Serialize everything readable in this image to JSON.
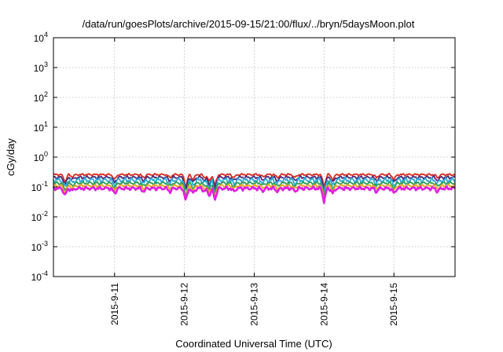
{
  "chart_data": {
    "type": "line",
    "title": "/data/run/goesPlots/archive/2015-09-15/21:00/flux/../bryn/5daysMoon.plot",
    "xlabel": "Coordinated Universal Time (UTC)",
    "ylabel": "cGy/day",
    "yscale": "log",
    "ylim": [
      0.0001,
      10000
    ],
    "xlim": [
      "2015-09-10T03:00",
      "2015-09-15T21:00"
    ],
    "grid": true,
    "legend": "none",
    "y_ticks": [
      {
        "base": "10",
        "exp": "-4",
        "value": 0.0001
      },
      {
        "base": "10",
        "exp": "-3",
        "value": 0.001
      },
      {
        "base": "10",
        "exp": "-2",
        "value": 0.01
      },
      {
        "base": "10",
        "exp": "-1",
        "value": 0.1
      },
      {
        "base": "10",
        "exp": "0",
        "value": 1
      },
      {
        "base": "10",
        "exp": "1",
        "value": 10
      },
      {
        "base": "10",
        "exp": "2",
        "value": 100
      },
      {
        "base": "10",
        "exp": "3",
        "value": 1000
      },
      {
        "base": "10",
        "exp": "4",
        "value": 10000
      }
    ],
    "x_ticks": [
      {
        "label": "2015-9-11",
        "value": "2015-09-11T00:00"
      },
      {
        "label": "2015-9-12",
        "value": "2015-09-12T00:00"
      },
      {
        "label": "2015-9-13",
        "value": "2015-09-13T00:00"
      },
      {
        "label": "2015-9-14",
        "value": "2015-09-14T00:00"
      },
      {
        "label": "2015-9-15",
        "value": "2015-09-15T00:00"
      }
    ],
    "series": [
      {
        "color": "#d8281e",
        "base": 0.26,
        "amp": 0.025
      },
      {
        "color": "#4a2a7a",
        "base": 0.21,
        "amp": 0.03
      },
      {
        "color": "#2aa9d6",
        "base": 0.17,
        "amp": 0.045
      },
      {
        "color": "#2f9e5a",
        "base": 0.135,
        "amp": 0.02
      },
      {
        "color": "#e8a21c",
        "base": 0.11,
        "amp": 0.015
      },
      {
        "color": "#e020e0",
        "base": 0.09,
        "amp": 0.015
      }
    ],
    "dips": [
      {
        "t": "2015-09-10T07:00",
        "depth": 0.05
      },
      {
        "t": "2015-09-10T09:30",
        "depth": 0.075
      },
      {
        "t": "2015-09-11T00:00",
        "depth": 0.06
      },
      {
        "t": "2015-09-11T10:00",
        "depth": 0.07
      },
      {
        "t": "2015-09-11T19:00",
        "depth": 0.07
      },
      {
        "t": "2015-09-12T00:30",
        "depth": 0.03
      },
      {
        "t": "2015-09-12T03:00",
        "depth": 0.06
      },
      {
        "t": "2015-09-12T07:00",
        "depth": 0.07
      },
      {
        "t": "2015-09-12T08:30",
        "depth": 0.05
      },
      {
        "t": "2015-09-12T10:30",
        "depth": 0.035
      },
      {
        "t": "2015-09-12T17:00",
        "depth": 0.07
      },
      {
        "t": "2015-09-13T03:00",
        "depth": 0.075
      },
      {
        "t": "2015-09-13T08:00",
        "depth": 0.07
      },
      {
        "t": "2015-09-13T14:00",
        "depth": 0.07
      },
      {
        "t": "2015-09-14T00:00",
        "depth": 0.03
      },
      {
        "t": "2015-09-14T03:00",
        "depth": 0.06
      },
      {
        "t": "2015-09-14T18:00",
        "depth": 0.07
      },
      {
        "t": "2015-09-15T00:00",
        "depth": 0.06
      },
      {
        "t": "2015-09-15T15:00",
        "depth": 0.07
      }
    ]
  }
}
